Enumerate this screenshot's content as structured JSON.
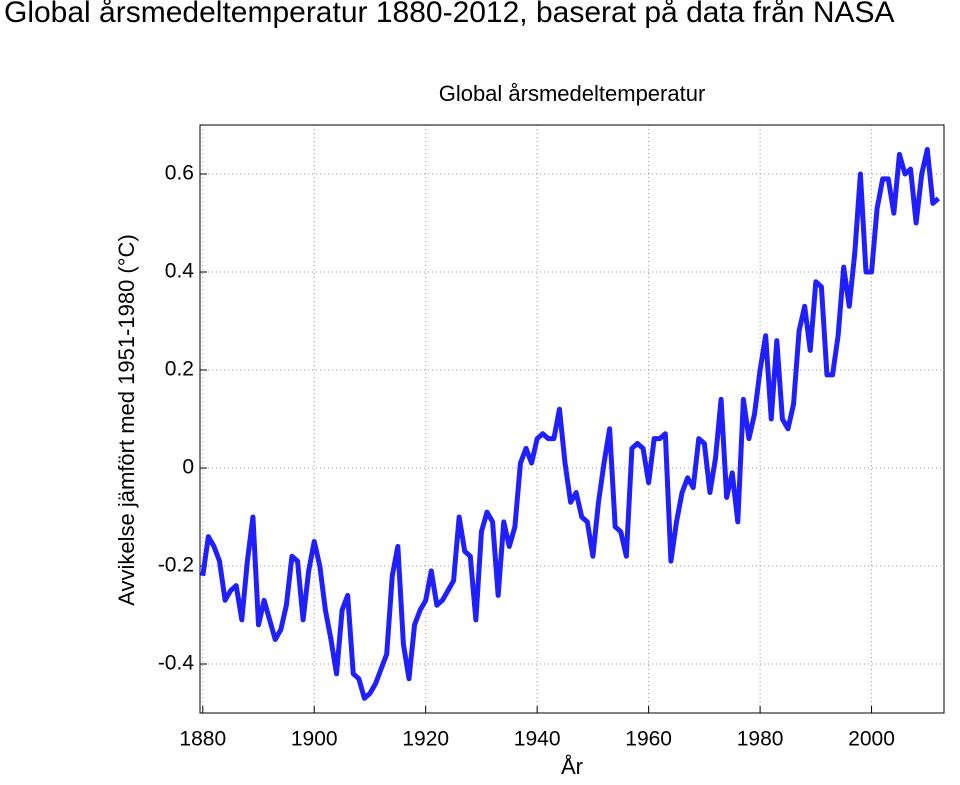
{
  "slide_title": "Global årsmedeltemperatur 1880-2012, baserat på data från NASA",
  "chart_data": {
    "type": "line",
    "title": "Global årsmedeltemperatur",
    "xlabel": "År",
    "ylabel": "Avvikelse jämfört med 1951-1980 (°C)",
    "color": "#1f1fff",
    "grid": true,
    "xlim": [
      1879.5,
      2013
    ],
    "ylim": [
      -0.5,
      0.7
    ],
    "xticks": [
      1880,
      1900,
      1920,
      1940,
      1960,
      1980,
      2000
    ],
    "yticks": [
      -0.4,
      -0.2,
      0,
      0.2,
      0.4,
      0.6
    ],
    "x": [
      1880,
      1881,
      1882,
      1883,
      1884,
      1885,
      1886,
      1887,
      1888,
      1889,
      1890,
      1891,
      1892,
      1893,
      1894,
      1895,
      1896,
      1897,
      1898,
      1899,
      1900,
      1901,
      1902,
      1903,
      1904,
      1905,
      1906,
      1907,
      1908,
      1909,
      1910,
      1911,
      1912,
      1913,
      1914,
      1915,
      1916,
      1917,
      1918,
      1919,
      1920,
      1921,
      1922,
      1923,
      1924,
      1925,
      1926,
      1927,
      1928,
      1929,
      1930,
      1931,
      1932,
      1933,
      1934,
      1935,
      1936,
      1937,
      1938,
      1939,
      1940,
      1941,
      1942,
      1943,
      1944,
      1945,
      1946,
      1947,
      1948,
      1949,
      1950,
      1951,
      1952,
      1953,
      1954,
      1955,
      1956,
      1957,
      1958,
      1959,
      1960,
      1961,
      1962,
      1963,
      1964,
      1965,
      1966,
      1967,
      1968,
      1969,
      1970,
      1971,
      1972,
      1973,
      1974,
      1975,
      1976,
      1977,
      1978,
      1979,
      1980,
      1981,
      1982,
      1983,
      1984,
      1985,
      1986,
      1987,
      1988,
      1989,
      1990,
      1991,
      1992,
      1993,
      1994,
      1995,
      1996,
      1997,
      1998,
      1999,
      2000,
      2001,
      2002,
      2003,
      2004,
      2005,
      2006,
      2007,
      2008,
      2009,
      2010,
      2011,
      2012
    ],
    "values": [
      -0.22,
      -0.14,
      -0.16,
      -0.19,
      -0.27,
      -0.25,
      -0.24,
      -0.31,
      -0.19,
      -0.1,
      -0.32,
      -0.27,
      -0.31,
      -0.35,
      -0.33,
      -0.28,
      -0.18,
      -0.19,
      -0.31,
      -0.21,
      -0.15,
      -0.2,
      -0.29,
      -0.35,
      -0.42,
      -0.29,
      -0.26,
      -0.42,
      -0.43,
      -0.47,
      -0.46,
      -0.44,
      -0.41,
      -0.38,
      -0.22,
      -0.16,
      -0.36,
      -0.43,
      -0.32,
      -0.29,
      -0.27,
      -0.21,
      -0.28,
      -0.27,
      -0.25,
      -0.23,
      -0.1,
      -0.17,
      -0.18,
      -0.31,
      -0.13,
      -0.09,
      -0.11,
      -0.26,
      -0.11,
      -0.16,
      -0.12,
      0.01,
      0.04,
      0.01,
      0.06,
      0.07,
      0.06,
      0.06,
      0.12,
      0.01,
      -0.07,
      -0.05,
      -0.1,
      -0.11,
      -0.18,
      -0.07,
      0.01,
      0.08,
      -0.12,
      -0.13,
      -0.18,
      0.04,
      0.05,
      0.04,
      -0.03,
      0.06,
      0.06,
      0.07,
      -0.19,
      -0.11,
      -0.05,
      -0.02,
      -0.04,
      0.06,
      0.05,
      -0.05,
      0.02,
      0.14,
      -0.06,
      -0.01,
      -0.11,
      0.14,
      0.06,
      0.11,
      0.2,
      0.27,
      0.1,
      0.26,
      0.1,
      0.08,
      0.13,
      0.28,
      0.33,
      0.24,
      0.38,
      0.37,
      0.19,
      0.19,
      0.27,
      0.41,
      0.33,
      0.44,
      0.6,
      0.4,
      0.4,
      0.53,
      0.59,
      0.59,
      0.52,
      0.64,
      0.6,
      0.61,
      0.5,
      0.6,
      0.65,
      0.54,
      0.55
    ]
  }
}
